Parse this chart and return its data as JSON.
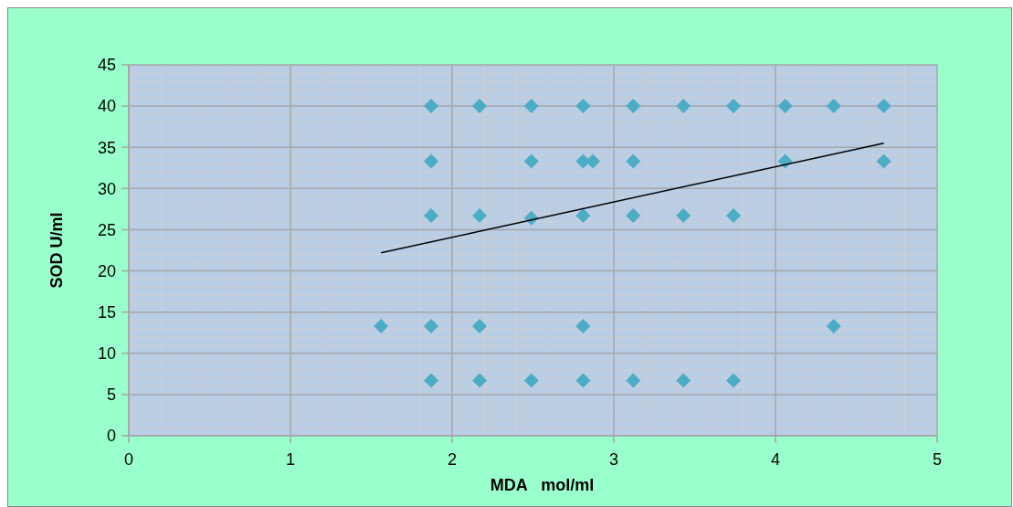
{
  "chart_data": {
    "type": "scatter",
    "xlabel": "MDA   mol/ml",
    "ylabel": "SOD U/ml",
    "xlim": [
      0,
      5
    ],
    "xticks": [
      0,
      1,
      2,
      3,
      4,
      5
    ],
    "ylim": [
      0,
      45
    ],
    "yticks": [
      0,
      5,
      10,
      15,
      20,
      25,
      30,
      35,
      40,
      45
    ],
    "grid": true,
    "series": [
      {
        "marker": "diamond",
        "color": "#4bacc6",
        "x": [
          1.87,
          2.17,
          2.49,
          2.81,
          3.12,
          3.43,
          3.74,
          4.06,
          4.36,
          4.67,
          1.87,
          2.49,
          2.81,
          2.87,
          3.12,
          4.06,
          4.67,
          1.87,
          2.17,
          2.49,
          2.81,
          3.12,
          3.43,
          3.74,
          1.56,
          1.87,
          2.17,
          2.81,
          4.36,
          1.87,
          2.17,
          2.49,
          2.81,
          3.12,
          3.43,
          3.74
        ],
        "values": [
          40,
          40,
          40,
          40,
          40,
          40,
          40,
          40,
          40,
          40,
          33.3,
          33.3,
          33.3,
          33.3,
          33.3,
          33.3,
          33.3,
          26.7,
          26.7,
          26.4,
          26.7,
          26.7,
          26.7,
          26.7,
          13.3,
          13.3,
          13.3,
          13.3,
          13.3,
          6.7,
          6.7,
          6.7,
          6.7,
          6.7,
          6.7,
          6.7
        ]
      },
      {
        "type": "line",
        "color": "#000000",
        "x": [
          1.56,
          4.67
        ],
        "values": [
          22.2,
          35.5
        ]
      }
    ]
  }
}
